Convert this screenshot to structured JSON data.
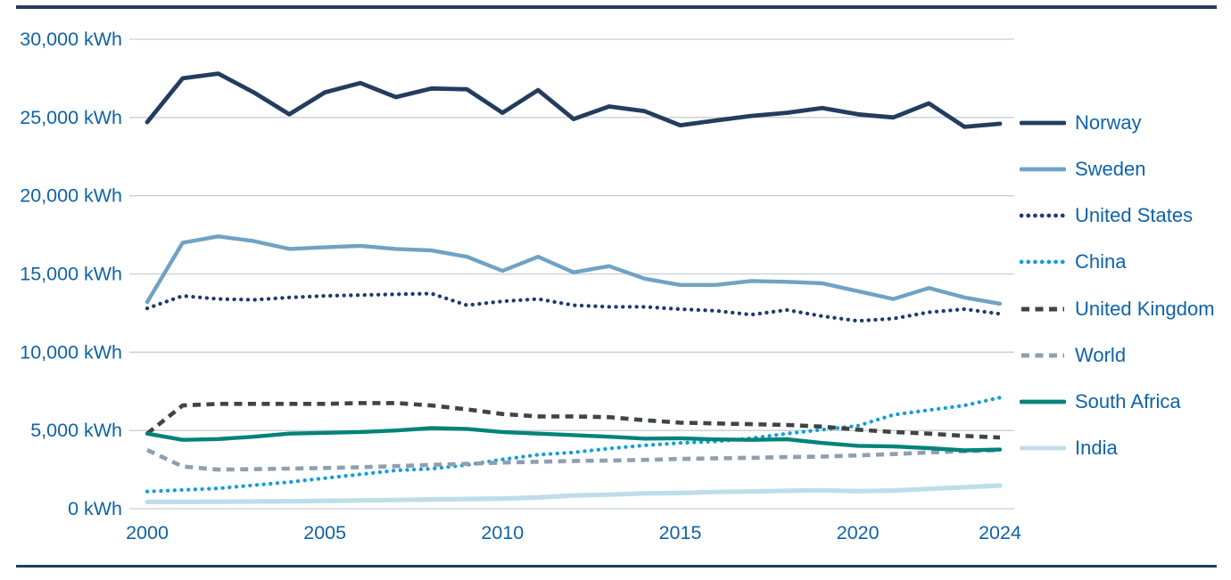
{
  "page": {
    "background": "#ffffff",
    "rule_color": "#223c62",
    "text_color": "#0f62a8",
    "grid_color": "#c9ced3"
  },
  "chart_data": {
    "type": "line",
    "title": "",
    "xlabel": "",
    "ylabel": "",
    "unit": "kWh",
    "xlim": [
      2000,
      2024
    ],
    "ylim": [
      0,
      30000
    ],
    "grid": true,
    "legend_position": "right",
    "x": [
      2000,
      2001,
      2002,
      2003,
      2004,
      2005,
      2006,
      2007,
      2008,
      2009,
      2010,
      2011,
      2012,
      2013,
      2014,
      2015,
      2016,
      2017,
      2018,
      2019,
      2020,
      2021,
      2022,
      2023,
      2024
    ],
    "x_ticks": [
      {
        "value": 2000,
        "label": "2000"
      },
      {
        "value": 2005,
        "label": "2005"
      },
      {
        "value": 2010,
        "label": "2010"
      },
      {
        "value": 2015,
        "label": "2015"
      },
      {
        "value": 2020,
        "label": "2020"
      },
      {
        "value": 2024,
        "label": "2024"
      }
    ],
    "y_ticks": [
      {
        "value": 0,
        "label": "0 kWh"
      },
      {
        "value": 5000,
        "label": "5,000 kWh"
      },
      {
        "value": 10000,
        "label": "10,000 kWh"
      },
      {
        "value": 15000,
        "label": "15,000 kWh"
      },
      {
        "value": 20000,
        "label": "20,000 kWh"
      },
      {
        "value": 25000,
        "label": "25,000 kWh"
      },
      {
        "value": 30000,
        "label": "30,000 kWh"
      }
    ],
    "series": [
      {
        "name": "Norway",
        "color": "#233c60",
        "style": "solid",
        "values": [
          24700,
          27500,
          27800,
          26600,
          25200,
          26600,
          27200,
          26300,
          26850,
          26800,
          25300,
          26750,
          24900,
          25700,
          25400,
          24500,
          24800,
          25100,
          25300,
          25600,
          25200,
          25000,
          25900,
          24400,
          24600
        ]
      },
      {
        "name": "Sweden",
        "color": "#70a2c4",
        "style": "solid",
        "values": [
          13200,
          17000,
          17400,
          17100,
          16600,
          16700,
          16800,
          16600,
          16500,
          16100,
          15200,
          16100,
          15100,
          15500,
          14700,
          14300,
          14300,
          14550,
          14500,
          14400,
          13900,
          13400,
          14100,
          13500,
          13100
        ]
      },
      {
        "name": "United States",
        "color": "#1c3b6e",
        "style": "dotted",
        "values": [
          12800,
          13600,
          13400,
          13350,
          13500,
          13600,
          13650,
          13700,
          13750,
          13000,
          13250,
          13400,
          13000,
          12900,
          12900,
          12750,
          12650,
          12400,
          12700,
          12300,
          12000,
          12150,
          12550,
          12750,
          12450
        ]
      },
      {
        "name": "China",
        "color": "#139ed6",
        "style": "dotted",
        "values": [
          1100,
          1200,
          1300,
          1500,
          1700,
          1950,
          2200,
          2450,
          2550,
          2800,
          3150,
          3450,
          3600,
          3850,
          4050,
          4200,
          4300,
          4500,
          4800,
          5050,
          5300,
          6000,
          6300,
          6600,
          7100
        ]
      },
      {
        "name": "United Kingdom",
        "color": "#3f4543",
        "style": "dashed",
        "values": [
          4800,
          6600,
          6700,
          6700,
          6700,
          6700,
          6750,
          6750,
          6600,
          6350,
          6050,
          5900,
          5900,
          5850,
          5650,
          5500,
          5450,
          5400,
          5350,
          5250,
          5050,
          4900,
          4800,
          4650,
          4550
        ]
      },
      {
        "name": "World",
        "color": "#909eb0",
        "style": "dashed",
        "values": [
          3750,
          2700,
          2500,
          2530,
          2560,
          2600,
          2650,
          2720,
          2800,
          2870,
          2950,
          3000,
          3050,
          3080,
          3120,
          3180,
          3220,
          3250,
          3300,
          3330,
          3410,
          3490,
          3600,
          3680,
          3740
        ]
      },
      {
        "name": "South Africa",
        "color": "#00837b",
        "style": "solid",
        "values": [
          4800,
          4400,
          4450,
          4600,
          4800,
          4850,
          4900,
          5000,
          5150,
          5100,
          4900,
          4800,
          4700,
          4600,
          4480,
          4500,
          4430,
          4400,
          4440,
          4200,
          4020,
          3980,
          3870,
          3730,
          3780
        ]
      },
      {
        "name": "India",
        "color": "#bedde8",
        "style": "solid",
        "values": [
          430,
          440,
          450,
          460,
          480,
          500,
          530,
          560,
          590,
          620,
          650,
          720,
          850,
          900,
          980,
          1000,
          1070,
          1100,
          1150,
          1170,
          1120,
          1160,
          1270,
          1370,
          1480
        ]
      }
    ]
  }
}
